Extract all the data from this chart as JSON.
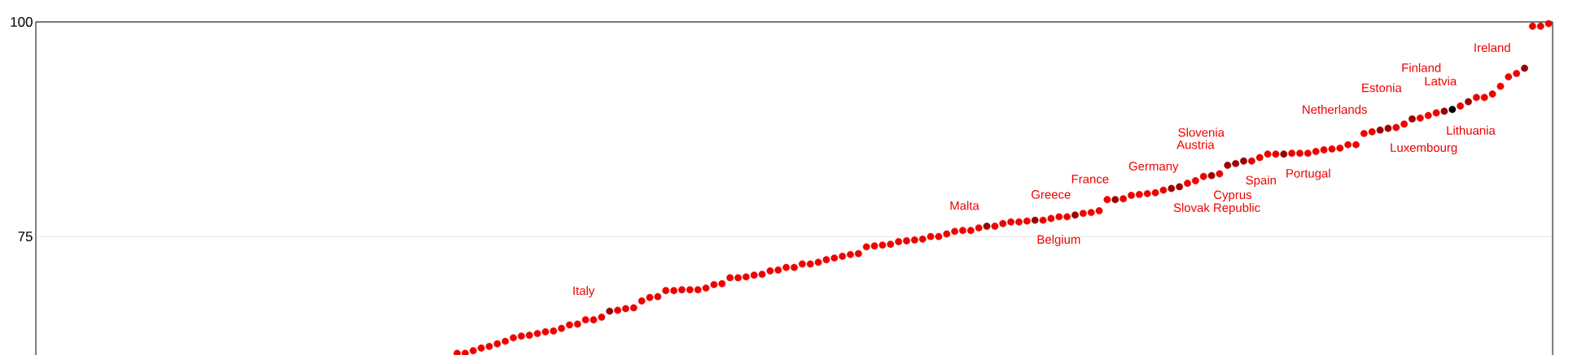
{
  "chart_data": {
    "type": "scatter",
    "categories": [
      null,
      null,
      null,
      null,
      null,
      null,
      null,
      null,
      null,
      null,
      null,
      null,
      null,
      null,
      null,
      null,
      null,
      null,
      null,
      null,
      null,
      null,
      null,
      null,
      null,
      null,
      null,
      null,
      null,
      null,
      null,
      null,
      null,
      null,
      null,
      null,
      null,
      null,
      null,
      null,
      null,
      null,
      null,
      null,
      null,
      null,
      null,
      null,
      null,
      null,
      null,
      null,
      null,
      null,
      null,
      null,
      null,
      null,
      null,
      null,
      null,
      null,
      null,
      null,
      null,
      null,
      null,
      null,
      null,
      null,
      null,
      null,
      null,
      null,
      null,
      null,
      null,
      null,
      null,
      null,
      null,
      null,
      null,
      null,
      null,
      null,
      null,
      null,
      null,
      null,
      null,
      null,
      null,
      null,
      null,
      null,
      null,
      null,
      null,
      null,
      null,
      null,
      null,
      null,
      null,
      null,
      null,
      null,
      null,
      null,
      null,
      null,
      null,
      null,
      null,
      null,
      null,
      null,
      null,
      null,
      null,
      null,
      null,
      null,
      null,
      null,
      null,
      null,
      null,
      null,
      null,
      null,
      null,
      null,
      null,
      null,
      null,
      null,
      null,
      null,
      null,
      null,
      null,
      null,
      null,
      null,
      null,
      null,
      null,
      null,
      null,
      null,
      null,
      null,
      null,
      null,
      null,
      null,
      null,
      null,
      null,
      null,
      null,
      null,
      null,
      null,
      null,
      null,
      null,
      null,
      null,
      null,
      null,
      null,
      null,
      null,
      null,
      null,
      null,
      null,
      null,
      null,
      null,
      null,
      null,
      null,
      null,
      null,
      null
    ],
    "values": [
      null,
      null,
      null,
      null,
      null,
      null,
      null,
      null,
      null,
      null,
      null,
      null,
      null,
      null,
      null,
      null,
      null,
      null,
      null,
      null,
      null,
      null,
      null,
      null,
      null,
      null,
      null,
      null,
      null,
      null,
      null,
      null,
      null,
      null,
      null,
      null,
      null,
      null,
      null,
      null,
      null,
      null,
      null,
      null,
      null,
      null,
      null,
      null,
      null,
      null,
      null,
      null,
      61.4,
      61.4,
      61.7,
      62.0,
      62.2,
      62.5,
      62.8,
      63.2,
      63.4,
      63.5,
      63.7,
      63.9,
      64.0,
      64.3,
      64.7,
      64.8,
      65.3,
      65.3,
      65.6,
      66.3,
      66.4,
      66.6,
      66.7,
      67.5,
      67.9,
      68.0,
      68.7,
      68.7,
      68.8,
      68.8,
      68.8,
      69.0,
      69.4,
      69.5,
      70.2,
      70.2,
      70.3,
      70.5,
      70.6,
      71.0,
      71.1,
      71.4,
      71.4,
      71.8,
      71.8,
      72.0,
      72.3,
      72.5,
      72.7,
      72.9,
      73.0,
      73.8,
      73.9,
      74.0,
      74.1,
      74.4,
      74.5,
      74.6,
      74.7,
      75.0,
      75.0,
      75.3,
      75.6,
      75.7,
      75.7,
      76.0,
      76.2,
      76.2,
      76.5,
      76.7,
      76.7,
      76.8,
      76.9,
      76.9,
      77.1,
      77.3,
      77.3,
      77.5,
      77.7,
      77.8,
      78.0,
      79.3,
      79.3,
      79.4,
      79.8,
      79.9,
      80.0,
      80.1,
      80.4,
      80.6,
      80.8,
      81.2,
      81.5,
      82.0,
      82.1,
      82.3,
      83.3,
      83.5,
      83.8,
      83.8,
      84.2,
      84.6,
      84.6,
      84.6,
      84.7,
      84.7,
      84.7,
      84.9,
      85.1,
      85.2,
      85.3,
      85.7,
      85.7,
      87.0,
      87.2,
      87.4,
      87.6,
      87.7,
      88.1,
      88.7,
      88.8,
      89.1,
      89.4,
      89.6,
      89.8,
      90.2,
      90.7,
      91.2,
      91.2,
      91.6,
      92.5,
      93.6,
      94.0,
      94.6,
      99.5,
      99.5,
      99.8
    ],
    "color": "#ee0000",
    "colors": [
      null,
      null,
      null,
      null,
      null,
      null,
      null,
      null,
      null,
      null,
      null,
      null,
      null,
      null,
      null,
      null,
      null,
      null,
      null,
      null,
      null,
      null,
      null,
      null,
      null,
      null,
      null,
      null,
      null,
      null,
      null,
      null,
      null,
      null,
      null,
      null,
      null,
      null,
      null,
      null,
      null,
      null,
      null,
      null,
      null,
      null,
      null,
      null,
      null,
      null,
      null,
      null,
      "#ee0000",
      "#ee0000",
      "#ee0000",
      "#ee0000",
      "#ee0000",
      "#ee0000",
      "#ee0000",
      "#ee0000",
      "#ee0000",
      "#ee0000",
      "#ee0000",
      "#ee0000",
      "#ee0000",
      "#ee0000",
      "#ee0000",
      "#ee0000",
      "#ee0000",
      "#ee0000",
      "#ee0000",
      "#990000",
      "#ee0000",
      "#ee0000",
      "#ee0000",
      "#ee0000",
      "#ee0000",
      "#ee0000",
      "#ee0000",
      "#ee0000",
      "#ee0000",
      "#ee0000",
      "#ee0000",
      "#ee0000",
      "#ee0000",
      "#ee0000",
      "#ee0000",
      "#ee0000",
      "#ee0000",
      "#ee0000",
      "#ee0000",
      "#ee0000",
      "#ee0000",
      "#ee0000",
      "#ee0000",
      "#ee0000",
      "#ee0000",
      "#ee0000",
      "#ee0000",
      "#ee0000",
      "#ee0000",
      "#ee0000",
      "#ee0000",
      "#ee0000",
      "#ee0000",
      "#ee0000",
      "#ee0000",
      "#ee0000",
      "#ee0000",
      "#ee0000",
      "#ee0000",
      "#ee0000",
      "#ee0000",
      "#ee0000",
      "#ee0000",
      "#ee0000",
      "#ee0000",
      "#ee0000",
      "#990000",
      "#ee0000",
      "#ee0000",
      "#ee0000",
      "#ee0000",
      "#ee0000",
      "#990000",
      "#ee0000",
      "#ee0000",
      "#ee0000",
      "#ee0000",
      "#990000",
      "#ee0000",
      "#ee0000",
      "#ee0000",
      "#ee0000",
      "#990000",
      "#ee0000",
      "#ee0000",
      "#ee0000",
      "#ee0000",
      "#ee0000",
      "#ee0000",
      "#990000",
      "#990000",
      "#ee0000",
      "#ee0000",
      "#ee0000",
      "#990000",
      "#ee0000",
      "#990000",
      "#990000",
      "#990000",
      "#ee0000",
      "#ee0000",
      "#ee0000",
      "#ee0000",
      "#990000",
      "#ee0000",
      "#ee0000",
      "#ee0000",
      "#ee0000",
      "#ee0000",
      "#ee0000",
      "#ee0000",
      "#ee0000",
      "#ee0000",
      "#ee0000",
      "#ee0000",
      "#990000",
      "#990000",
      "#ee0000",
      "#ee0000",
      "#990000",
      "#ee0000",
      "#ee0000",
      "#ee0000",
      "#990000",
      "#000000",
      "#ee0000",
      "#990000",
      "#ee0000",
      "#ee0000",
      "#ee0000",
      "#ee0000",
      "#ee0000",
      "#ee0000",
      "#990000",
      "#ee0000",
      "#ee0000",
      "#ee0000"
    ],
    "value_labels": [
      null,
      null,
      null,
      null,
      null,
      null,
      null,
      null,
      null,
      null,
      null,
      null,
      null,
      null,
      null,
      null,
      null,
      null,
      null,
      null,
      null,
      null,
      null,
      null,
      null,
      null,
      null,
      null,
      null,
      null,
      null,
      null,
      null,
      null,
      null,
      null,
      null,
      null,
      null,
      null,
      null,
      null,
      null,
      null,
      null,
      null,
      null,
      null,
      null,
      null,
      null,
      null,
      null,
      null,
      null,
      null,
      null,
      null,
      null,
      null,
      null,
      null,
      null,
      null,
      null,
      null,
      null,
      null,
      null,
      null,
      null,
      "Italy",
      null,
      null,
      null,
      null,
      null,
      null,
      null,
      null,
      null,
      null,
      null,
      null,
      null,
      null,
      null,
      null,
      null,
      null,
      null,
      null,
      null,
      null,
      null,
      null,
      null,
      null,
      null,
      null,
      null,
      null,
      null,
      null,
      null,
      null,
      null,
      null,
      null,
      null,
      null,
      null,
      null,
      null,
      null,
      null,
      null,
      null,
      "Malta",
      null,
      null,
      null,
      null,
      null,
      "Belgium",
      null,
      null,
      null,
      null,
      "Greece",
      null,
      null,
      null,
      null,
      "France",
      null,
      null,
      null,
      null,
      null,
      null,
      "Slovak Republic",
      "Germany",
      null,
      null,
      null,
      "Cyprus",
      null,
      "Austria",
      "Slovenia",
      "Spain",
      null,
      null,
      null,
      null,
      "Portugal",
      null,
      null,
      null,
      null,
      null,
      null,
      null,
      null,
      null,
      null,
      null,
      "Netherlands",
      "Luxembourg",
      null,
      null,
      "Estonia",
      null,
      null,
      null,
      "Lithuania",
      "Finland",
      null,
      "Latvia",
      null,
      null,
      null,
      null,
      null,
      null,
      "Ireland",
      null,
      null,
      null
    ],
    "ylim": [
      61.2,
      100
    ],
    "yticks": [
      75,
      100
    ],
    "grid": "y",
    "tick_labels": "y",
    "marker": "circle"
  }
}
